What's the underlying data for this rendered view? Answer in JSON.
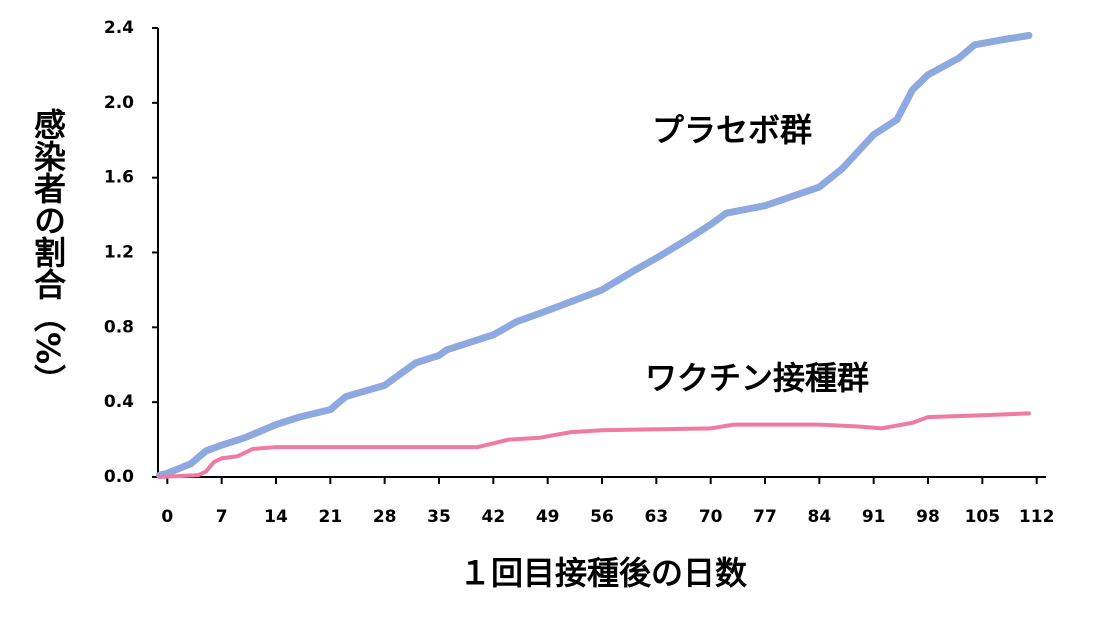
{
  "chart_data": {
    "type": "line",
    "x_label": "１回目接種後の日数",
    "y_label": "感染者の割合（%）",
    "annotations": [
      "プラセボ群",
      "ワクチン接種群"
    ],
    "xlim": [
      -1.2,
      113.2
    ],
    "ylim": [
      0,
      2.4
    ],
    "xticks": [
      0,
      7,
      14,
      21,
      28,
      35,
      42,
      49,
      56,
      63,
      70,
      77,
      84,
      91,
      98,
      105,
      112
    ],
    "yticks": [
      {
        "value": 0,
        "label": "0.0"
      },
      {
        "value": 0.4,
        "label": "0.4"
      },
      {
        "value": 0.8,
        "label": "0.8"
      },
      {
        "value": 1.2,
        "label": "1.2"
      },
      {
        "value": 1.6,
        "label": "1.6"
      },
      {
        "value": 2.0,
        "label": "2.0"
      },
      {
        "value": 2.4,
        "label": "2.4"
      }
    ],
    "series": [
      {
        "name": "プラセボ群",
        "color": "#8ea8e0",
        "width": 7,
        "x": [
          -1,
          0,
          3,
          5,
          7,
          10,
          14,
          17,
          21,
          23,
          28,
          32,
          35,
          36,
          42,
          45,
          49,
          56,
          60,
          63,
          67,
          70,
          72,
          77,
          84,
          87,
          91,
          94,
          96,
          98,
          102,
          104,
          108,
          111
        ],
        "values": [
          0.01,
          0.02,
          0.07,
          0.14,
          0.17,
          0.21,
          0.28,
          0.32,
          0.36,
          0.43,
          0.49,
          0.61,
          0.65,
          0.68,
          0.76,
          0.83,
          0.89,
          1.0,
          1.1,
          1.17,
          1.27,
          1.35,
          1.41,
          1.45,
          1.55,
          1.65,
          1.83,
          1.91,
          2.07,
          2.15,
          2.24,
          2.31,
          2.34,
          2.36
        ]
      },
      {
        "name": "ワクチン接種群",
        "color": "#f07aa0",
        "width": 4,
        "x": [
          -1,
          4,
          5,
          6,
          7,
          9,
          11,
          14,
          28,
          40,
          44,
          48,
          52,
          56,
          70,
          73,
          84,
          89,
          92,
          96,
          98,
          105,
          111
        ],
        "values": [
          0,
          0.01,
          0.03,
          0.08,
          0.1,
          0.11,
          0.15,
          0.16,
          0.16,
          0.16,
          0.2,
          0.21,
          0.24,
          0.25,
          0.26,
          0.28,
          0.28,
          0.27,
          0.26,
          0.29,
          0.32,
          0.33,
          0.34
        ]
      }
    ]
  }
}
